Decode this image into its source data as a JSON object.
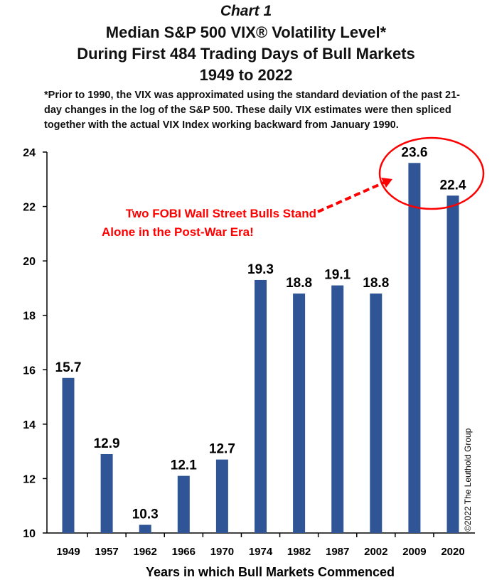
{
  "chart_data": {
    "type": "bar",
    "label": "Chart 1",
    "title": "Median S&P 500 VIX® Volatility Level*",
    "subtitle_lines": [
      "During First 484 Trading Days of Bull Markets",
      "1949 to 2022"
    ],
    "footnote": "*Prior to 1990, the VIX was approximated using the standard deviation of the past 21-day changes in the log of the S&P 500. These daily VIX estimates were then spliced together with the actual VIX Index working backward from January 1990.",
    "categories": [
      "1949",
      "1957",
      "1962",
      "1966",
      "1970",
      "1974",
      "1982",
      "1987",
      "2002",
      "2009",
      "2020"
    ],
    "values": [
      15.7,
      12.9,
      10.3,
      12.1,
      12.7,
      19.3,
      18.8,
      19.1,
      18.8,
      23.6,
      22.4
    ],
    "data_labels": [
      "15.7",
      "12.9",
      "10.3",
      "12.1",
      "12.7",
      "19.3",
      "18.8",
      "19.1",
      "18.8",
      "23.6",
      "22.4"
    ],
    "xlabel": "Years in which Bull Markets Commenced",
    "ylabel": "",
    "ylim": [
      10,
      24
    ],
    "yticks": [
      "10",
      "12",
      "14",
      "16",
      "18",
      "20",
      "22",
      "24"
    ],
    "grid": false,
    "annotation": [
      "Two FOBI Wall Street Bulls Stand",
      "Alone in the Post-War Era!"
    ],
    "copyright": "©2022 The Leuthold Group",
    "bar_color": "#2F5597",
    "annotation_color": "#FF0000"
  }
}
